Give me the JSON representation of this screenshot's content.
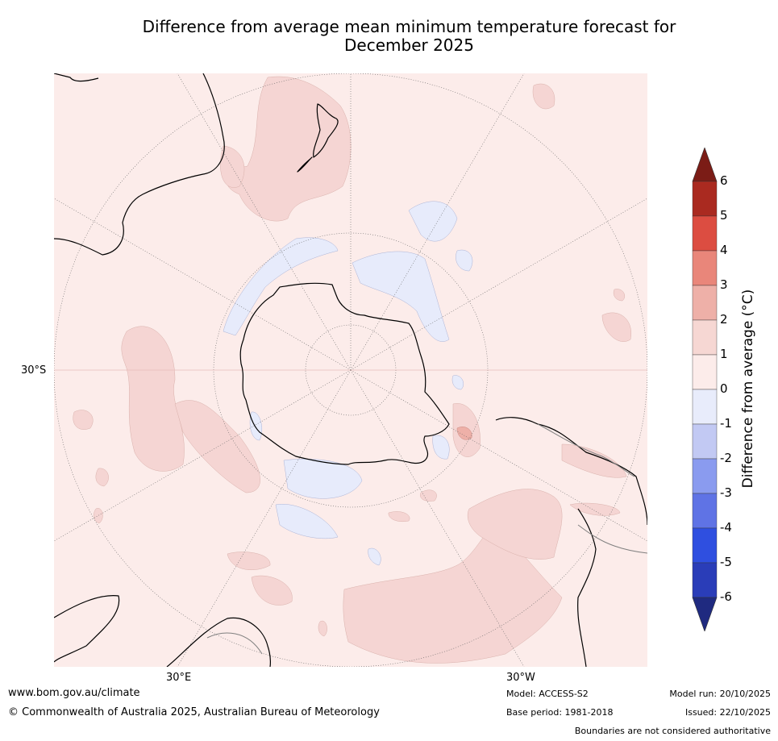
{
  "title_line1": "Difference from average mean minimum temperature forecast for",
  "title_line2": "December 2025",
  "axes": {
    "lat_label": "30°S",
    "lon_labels": [
      "30°E",
      "30°W"
    ]
  },
  "colorbar": {
    "label": "Difference from average (°C)",
    "label_main": "Difference from average (",
    "label_unit": "°C)",
    "ticks": [
      "6",
      "5",
      "4",
      "3",
      "2",
      "1",
      "0",
      "-1",
      "-2",
      "-3",
      "-4",
      "-5",
      "-6"
    ],
    "colors": [
      "#7b1c16",
      "#aa2a20",
      "#dc4d41",
      "#e9867a",
      "#eeb0a8",
      "#f6d7d3",
      "#fcecea",
      "#e8ecfb",
      "#c2c9f3",
      "#8a9bef",
      "#5f73e5",
      "#2f4fe0",
      "#2a3db8",
      "#1f2a80"
    ]
  },
  "map": {
    "fill_colors": {
      "background": "#fcecea",
      "warm": "#f5d5d3",
      "warm_strong": "#eeb0a8",
      "cool": "#e7ebfb",
      "land_line": "#000000",
      "border_line": "#808080"
    }
  },
  "footer": {
    "website": "www.bom.gov.au/climate",
    "copyright": "© Commonwealth of Australia 2025, Australian Bureau of Meteorology",
    "model": "Model: ACCESS-S2",
    "base_period": "Base period: 1981-2018",
    "model_run": "Model run: 20/10/2025",
    "issued": "Issued: 22/10/2025",
    "disclaimer": "Boundaries are not considered authoritative"
  }
}
